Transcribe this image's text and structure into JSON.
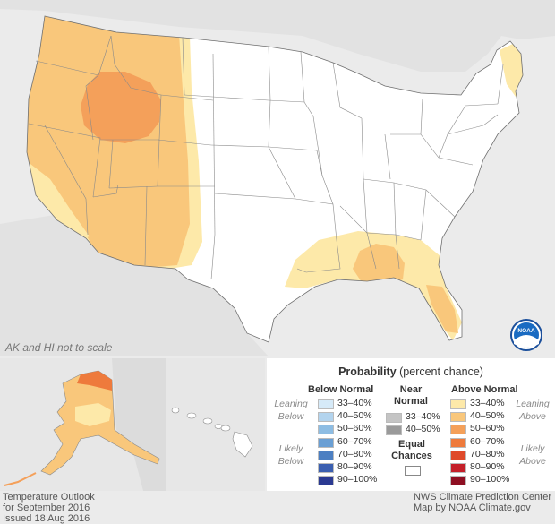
{
  "map_note": "AK and HI not to scale",
  "legend": {
    "title_bold": "Probability",
    "title_rest": " (percent chance)",
    "below_normal": {
      "heading": "Below Normal",
      "leaning": "Leaning Below",
      "likely": "Likely Below",
      "items": [
        {
          "label": "33–40%",
          "color": "#d6eaf8"
        },
        {
          "label": "40–50%",
          "color": "#b3d4ee"
        },
        {
          "label": "50–60%",
          "color": "#8ebde3"
        },
        {
          "label": "60–70%",
          "color": "#6a9fd4"
        },
        {
          "label": "70–80%",
          "color": "#4c7fc2"
        },
        {
          "label": "80–90%",
          "color": "#3b5fb0"
        },
        {
          "label": "90–100%",
          "color": "#2b3a92"
        }
      ]
    },
    "near_normal": {
      "heading_line1": "Near",
      "heading_line2": "Normal",
      "items": [
        {
          "label": "33–40%",
          "color": "#c4c4c4"
        },
        {
          "label": "40–50%",
          "color": "#9a9a9a"
        }
      ]
    },
    "equal_chances": {
      "line1": "Equal",
      "line2": "Chances",
      "color": "#ffffff"
    },
    "above_normal": {
      "heading": "Above Normal",
      "leaning": "Leaning Above",
      "likely": "Likely Above",
      "items": [
        {
          "label": "33–40%",
          "color": "#fde9a9"
        },
        {
          "label": "40–50%",
          "color": "#f9c77b"
        },
        {
          "label": "50–60%",
          "color": "#f4a05a"
        },
        {
          "label": "60–70%",
          "color": "#ee7a3c"
        },
        {
          "label": "70–80%",
          "color": "#df4a2a"
        },
        {
          "label": "80–90%",
          "color": "#c4202a"
        },
        {
          "label": "90–100%",
          "color": "#8e0f22"
        }
      ]
    }
  },
  "footer": {
    "left_line1": "Temperature Outlook",
    "left_line2": "for September 2016",
    "left_line3": "Issued 18 Aug 2016",
    "right_line1": "NWS Climate Prediction Center",
    "right_line2": "Map by NOAA Climate.gov"
  },
  "noaa_logo_text": "NOAA"
}
